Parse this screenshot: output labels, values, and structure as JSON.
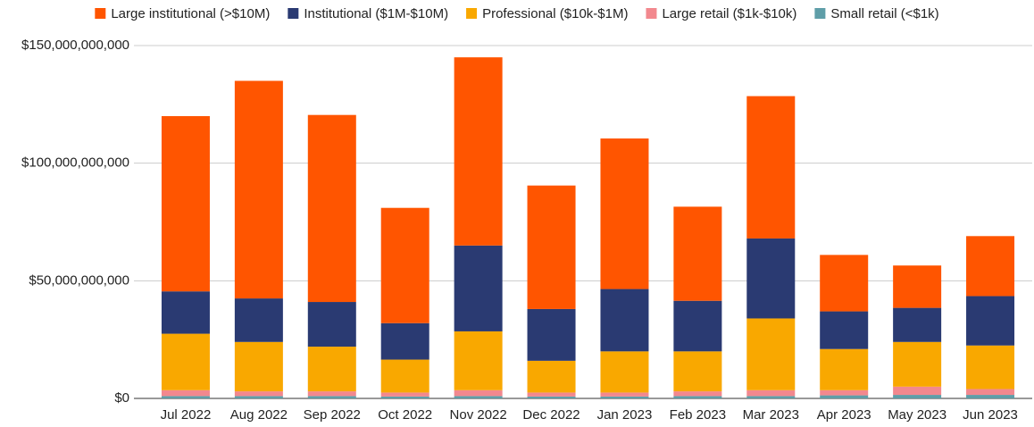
{
  "chart_data": {
    "type": "stacked_bar",
    "categories": [
      "Jul 2022",
      "Aug 2022",
      "Sep 2022",
      "Oct 2022",
      "Nov 2022",
      "Dec 2022",
      "Jan 2023",
      "Feb 2023",
      "Mar 2023",
      "Apr 2023",
      "May 2023",
      "Jun 2023"
    ],
    "series": [
      {
        "name": "Large institutional (>$10M)",
        "color": "#ff5500",
        "values": [
          74500000000,
          92500000000,
          79500000000,
          49000000000,
          80000000000,
          52500000000,
          64000000000,
          40000000000,
          60500000000,
          24000000000,
          18000000000,
          25500000000
        ]
      },
      {
        "name": "Institutional ($1M-$10M)",
        "color": "#2a3a72",
        "values": [
          18000000000,
          18500000000,
          19000000000,
          15500000000,
          36500000000,
          22000000000,
          26500000000,
          21500000000,
          34000000000,
          16000000000,
          14500000000,
          21000000000
        ]
      },
      {
        "name": "Professional ($10k-$1M)",
        "color": "#f9a800",
        "values": [
          24000000000,
          21000000000,
          19000000000,
          14000000000,
          25000000000,
          13500000000,
          17500000000,
          17000000000,
          30500000000,
          17500000000,
          19000000000,
          18500000000
        ]
      },
      {
        "name": "Large retail ($1k-$10k)",
        "color": "#f2888e",
        "values": [
          2500000000,
          2000000000,
          2000000000,
          1700000000,
          2500000000,
          1700000000,
          1700000000,
          2000000000,
          2500000000,
          2200000000,
          3500000000,
          2500000000
        ]
      },
      {
        "name": "Small retail (<$1k)",
        "color": "#5f9ea8",
        "values": [
          1000000000,
          1000000000,
          1000000000,
          800000000,
          1000000000,
          800000000,
          800000000,
          1000000000,
          1000000000,
          1300000000,
          1500000000,
          1500000000
        ]
      }
    ],
    "ylim": [
      0,
      150000000000
    ],
    "yticks": [
      {
        "value": 0,
        "label": "$0"
      },
      {
        "value": 50000000000,
        "label": "$50,000,000,000"
      },
      {
        "value": 100000000000,
        "label": "$100,000,000,000"
      },
      {
        "value": 150000000000,
        "label": "$150,000,000,000"
      }
    ],
    "grid": true,
    "legend": "top"
  }
}
